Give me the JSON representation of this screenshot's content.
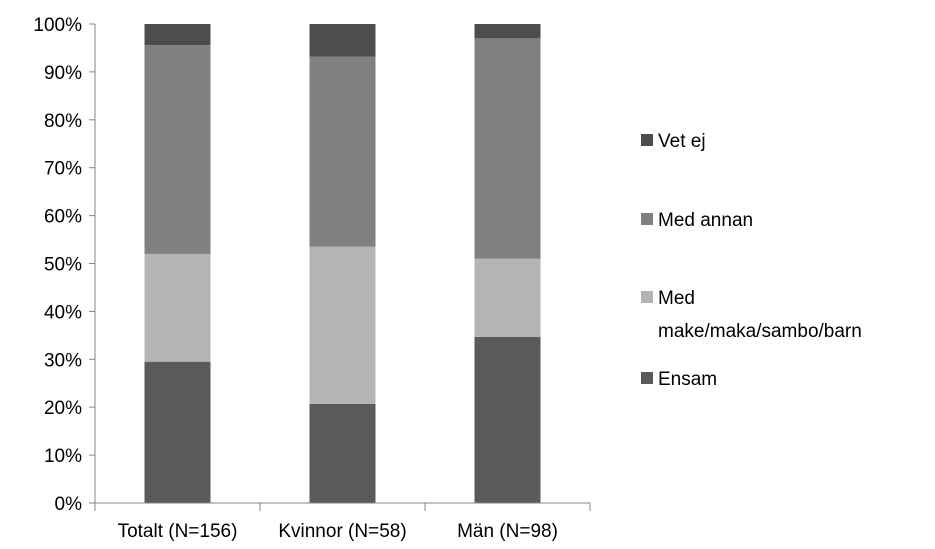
{
  "chart_data": {
    "type": "bar",
    "stacked": true,
    "percent_stacked": true,
    "categories": [
      "Totalt (N=156)",
      "Kvinnor (N=58)",
      "Män (N=98)"
    ],
    "series": [
      {
        "name": "Ensam",
        "values": [
          29.5,
          20.7,
          34.7
        ],
        "color": "#5a5a5a"
      },
      {
        "name": "Med make/maka/sambo/barn",
        "values": [
          22.5,
          32.8,
          16.3
        ],
        "color": "#b4b4b4"
      },
      {
        "name": "Med annan",
        "values": [
          43.6,
          39.7,
          46.0
        ],
        "color": "#808080"
      },
      {
        "name": "Vet ej",
        "values": [
          4.4,
          6.8,
          3.0
        ],
        "color": "#4d4d4d"
      }
    ],
    "yticks": [
      "0%",
      "10%",
      "20%",
      "30%",
      "40%",
      "50%",
      "60%",
      "70%",
      "80%",
      "90%",
      "100%"
    ],
    "ylim": [
      0,
      100
    ],
    "grid": false,
    "legend": {
      "placement": "right",
      "entries": [
        {
          "series": "Vet ej",
          "lines": [
            "Vet ej"
          ]
        },
        {
          "series": "Med annan",
          "lines": [
            "Med annan"
          ]
        },
        {
          "series": "Med make/maka/sambo/barn",
          "lines": [
            "Med",
            "make/maka/sambo/barn"
          ]
        },
        {
          "series": "Ensam",
          "lines": [
            "Ensam"
          ]
        }
      ]
    }
  }
}
